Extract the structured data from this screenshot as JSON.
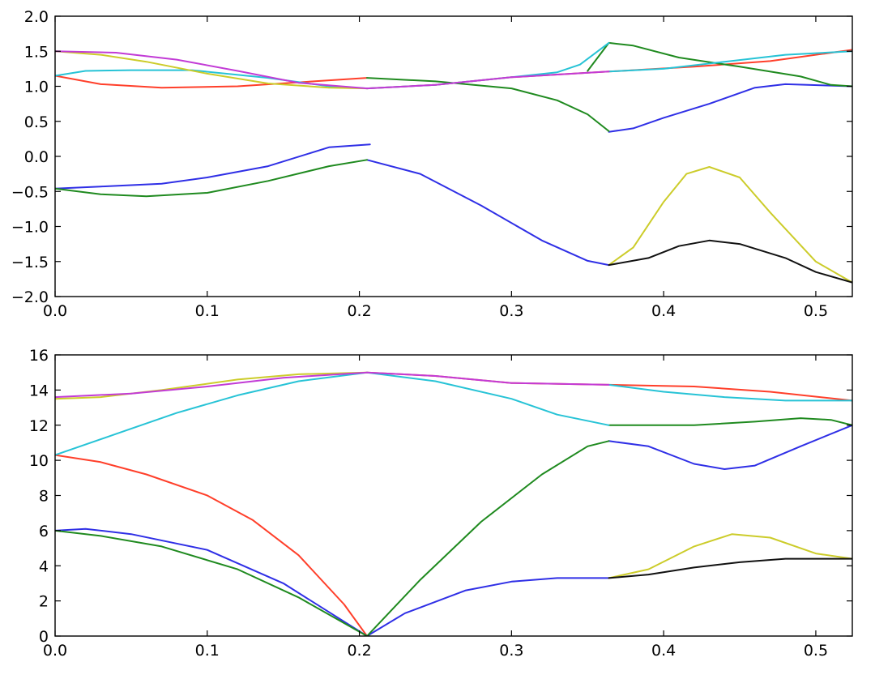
{
  "chart_data": [
    {
      "type": "line",
      "title": "",
      "xlabel": "",
      "ylabel": "",
      "xlim": [
        0.0,
        0.524
      ],
      "ylim": [
        -2.0,
        2.0
      ],
      "xticks": [
        0.0,
        0.1,
        0.2,
        0.3,
        0.4,
        0.5
      ],
      "xtick_labels": [
        "0.0",
        "0.1",
        "0.2",
        "0.3",
        "0.4",
        "0.5"
      ],
      "yticks": [
        -2.0,
        -1.5,
        -1.0,
        -0.5,
        0.0,
        0.5,
        1.0,
        1.5,
        2.0
      ],
      "ytick_labels": [
        "−2.0",
        "−1.5",
        "−1.0",
        "−0.5",
        "0.0",
        "0.5",
        "1.0",
        "1.5",
        "2.0"
      ],
      "grid": false,
      "series": [
        {
          "color": "#ff3f2a",
          "segments": [
            [
              [
                0.0,
                1.15
              ],
              [
                0.03,
                1.03
              ],
              [
                0.07,
                0.98
              ],
              [
                0.12,
                1.0
              ],
              [
                0.17,
                1.07
              ],
              [
                0.205,
                1.12
              ]
            ],
            [
              [
                0.205,
                0.97
              ],
              [
                0.25,
                1.02
              ],
              [
                0.3,
                1.13
              ],
              [
                0.364,
                1.21
              ],
              [
                0.42,
                1.28
              ],
              [
                0.47,
                1.36
              ],
              [
                0.524,
                1.52
              ]
            ]
          ]
        },
        {
          "color": "#2f2fe6",
          "segments": [
            [
              [
                0.0,
                -0.46
              ],
              [
                0.03,
                -0.43
              ],
              [
                0.07,
                -0.39
              ],
              [
                0.1,
                -0.3
              ],
              [
                0.14,
                -0.14
              ],
              [
                0.18,
                0.13
              ],
              [
                0.207,
                0.17
              ]
            ],
            [
              [
                0.205,
                -0.05
              ],
              [
                0.24,
                -0.25
              ],
              [
                0.28,
                -0.7
              ],
              [
                0.32,
                -1.2
              ],
              [
                0.35,
                -1.49
              ],
              [
                0.364,
                -1.55
              ]
            ],
            [
              [
                0.364,
                0.35
              ],
              [
                0.38,
                0.4
              ],
              [
                0.4,
                0.55
              ],
              [
                0.43,
                0.75
              ],
              [
                0.46,
                0.98
              ],
              [
                0.48,
                1.03
              ],
              [
                0.524,
                1.0
              ]
            ]
          ]
        },
        {
          "color": "#1f8a1f",
          "segments": [
            [
              [
                0.0,
                -0.46
              ],
              [
                0.03,
                -0.54
              ],
              [
                0.06,
                -0.57
              ],
              [
                0.1,
                -0.52
              ],
              [
                0.14,
                -0.35
              ],
              [
                0.18,
                -0.14
              ],
              [
                0.205,
                -0.05
              ]
            ],
            [
              [
                0.205,
                1.12
              ],
              [
                0.25,
                1.07
              ],
              [
                0.3,
                0.97
              ],
              [
                0.33,
                0.8
              ],
              [
                0.35,
                0.6
              ],
              [
                0.364,
                0.36
              ]
            ],
            [
              [
                0.35,
                1.22
              ],
              [
                0.364,
                1.62
              ],
              [
                0.38,
                1.58
              ],
              [
                0.41,
                1.41
              ],
              [
                0.45,
                1.28
              ],
              [
                0.49,
                1.14
              ],
              [
                0.51,
                1.02
              ],
              [
                0.524,
                1.0
              ]
            ]
          ]
        },
        {
          "color": "#27c3d6",
          "segments": [
            [
              [
                0.0,
                1.15
              ],
              [
                0.02,
                1.22
              ],
              [
                0.05,
                1.23
              ],
              [
                0.09,
                1.23
              ],
              [
                0.14,
                1.12
              ],
              [
                0.18,
                1.0
              ],
              [
                0.205,
                0.97
              ]
            ],
            [
              [
                0.205,
                0.97
              ],
              [
                0.25,
                1.02
              ],
              [
                0.3,
                1.13
              ],
              [
                0.33,
                1.2
              ],
              [
                0.345,
                1.31
              ],
              [
                0.364,
                1.62
              ]
            ],
            [
              [
                0.364,
                1.21
              ],
              [
                0.4,
                1.25
              ],
              [
                0.44,
                1.35
              ],
              [
                0.48,
                1.45
              ],
              [
                0.524,
                1.5
              ]
            ]
          ]
        },
        {
          "color": "#cccc2a",
          "segments": [
            [
              [
                0.0,
                1.5
              ],
              [
                0.03,
                1.45
              ],
              [
                0.06,
                1.35
              ],
              [
                0.1,
                1.18
              ],
              [
                0.14,
                1.04
              ],
              [
                0.18,
                0.98
              ],
              [
                0.205,
                0.97
              ]
            ],
            [
              [
                0.364,
                -1.55
              ],
              [
                0.38,
                -1.3
              ],
              [
                0.4,
                -0.65
              ],
              [
                0.415,
                -0.25
              ],
              [
                0.43,
                -0.15
              ],
              [
                0.45,
                -0.3
              ],
              [
                0.47,
                -0.8
              ],
              [
                0.5,
                -1.5
              ],
              [
                0.524,
                -1.8
              ]
            ]
          ]
        },
        {
          "color": "#c23bd6",
          "segments": [
            [
              [
                0.0,
                1.5
              ],
              [
                0.04,
                1.48
              ],
              [
                0.08,
                1.38
              ],
              [
                0.12,
                1.22
              ],
              [
                0.16,
                1.05
              ],
              [
                0.205,
                0.97
              ]
            ],
            [
              [
                0.205,
                0.97
              ],
              [
                0.25,
                1.02
              ],
              [
                0.3,
                1.13
              ],
              [
                0.364,
                1.21
              ]
            ]
          ]
        },
        {
          "color": "#111111",
          "segments": [
            [
              [
                0.364,
                -1.55
              ],
              [
                0.39,
                -1.45
              ],
              [
                0.41,
                -1.28
              ],
              [
                0.43,
                -1.2
              ],
              [
                0.45,
                -1.25
              ],
              [
                0.48,
                -1.45
              ],
              [
                0.5,
                -1.65
              ],
              [
                0.524,
                -1.8
              ]
            ]
          ]
        }
      ]
    },
    {
      "type": "line",
      "title": "",
      "xlabel": "",
      "ylabel": "",
      "xlim": [
        0.0,
        0.524
      ],
      "ylim": [
        0,
        16
      ],
      "xticks": [
        0.0,
        0.1,
        0.2,
        0.3,
        0.4,
        0.5
      ],
      "xtick_labels": [
        "0.0",
        "0.1",
        "0.2",
        "0.3",
        "0.4",
        "0.5"
      ],
      "yticks": [
        0,
        2,
        4,
        6,
        8,
        10,
        12,
        14,
        16
      ],
      "ytick_labels": [
        "0",
        "2",
        "4",
        "6",
        "8",
        "10",
        "12",
        "14",
        "16"
      ],
      "grid": false,
      "series": [
        {
          "color": "#ff3f2a",
          "segments": [
            [
              [
                0.0,
                10.3
              ],
              [
                0.03,
                9.9
              ],
              [
                0.06,
                9.2
              ],
              [
                0.1,
                8.0
              ],
              [
                0.13,
                6.6
              ],
              [
                0.16,
                4.6
              ],
              [
                0.19,
                1.8
              ],
              [
                0.205,
                0.0
              ]
            ],
            [
              [
                0.205,
                15.0
              ],
              [
                0.25,
                14.8
              ],
              [
                0.3,
                14.4
              ],
              [
                0.364,
                14.3
              ],
              [
                0.42,
                14.2
              ],
              [
                0.47,
                13.9
              ],
              [
                0.524,
                13.4
              ]
            ]
          ]
        },
        {
          "color": "#2f2fe6",
          "segments": [
            [
              [
                0.0,
                6.0
              ],
              [
                0.02,
                6.1
              ],
              [
                0.05,
                5.8
              ],
              [
                0.1,
                4.9
              ],
              [
                0.15,
                3.0
              ],
              [
                0.205,
                0.0
              ]
            ],
            [
              [
                0.205,
                0.0
              ],
              [
                0.23,
                1.3
              ],
              [
                0.27,
                2.6
              ],
              [
                0.3,
                3.1
              ],
              [
                0.33,
                3.3
              ],
              [
                0.364,
                3.3
              ]
            ],
            [
              [
                0.364,
                11.1
              ],
              [
                0.39,
                10.8
              ],
              [
                0.42,
                9.8
              ],
              [
                0.44,
                9.5
              ],
              [
                0.46,
                9.7
              ],
              [
                0.49,
                10.8
              ],
              [
                0.524,
                12.0
              ]
            ]
          ]
        },
        {
          "color": "#1f8a1f",
          "segments": [
            [
              [
                0.0,
                6.0
              ],
              [
                0.03,
                5.7
              ],
              [
                0.07,
                5.1
              ],
              [
                0.12,
                3.8
              ],
              [
                0.16,
                2.2
              ],
              [
                0.205,
                0.0
              ]
            ],
            [
              [
                0.205,
                0.0
              ],
              [
                0.24,
                3.2
              ],
              [
                0.28,
                6.5
              ],
              [
                0.32,
                9.2
              ],
              [
                0.35,
                10.8
              ],
              [
                0.364,
                11.1
              ]
            ],
            [
              [
                0.364,
                12.0
              ],
              [
                0.42,
                12.0
              ],
              [
                0.46,
                12.2
              ],
              [
                0.49,
                12.4
              ],
              [
                0.51,
                12.3
              ],
              [
                0.524,
                12.0
              ]
            ]
          ]
        },
        {
          "color": "#27c3d6",
          "segments": [
            [
              [
                0.0,
                10.3
              ],
              [
                0.04,
                11.5
              ],
              [
                0.08,
                12.7
              ],
              [
                0.12,
                13.7
              ],
              [
                0.16,
                14.5
              ],
              [
                0.205,
                15.0
              ]
            ],
            [
              [
                0.205,
                15.0
              ],
              [
                0.25,
                14.5
              ],
              [
                0.3,
                13.5
              ],
              [
                0.33,
                12.6
              ],
              [
                0.364,
                12.0
              ]
            ],
            [
              [
                0.364,
                14.3
              ],
              [
                0.4,
                13.9
              ],
              [
                0.44,
                13.6
              ],
              [
                0.48,
                13.4
              ],
              [
                0.524,
                13.4
              ]
            ]
          ]
        },
        {
          "color": "#cccc2a",
          "segments": [
            [
              [
                0.0,
                13.5
              ],
              [
                0.03,
                13.6
              ],
              [
                0.07,
                14.0
              ],
              [
                0.12,
                14.6
              ],
              [
                0.16,
                14.9
              ],
              [
                0.205,
                15.0
              ]
            ],
            [
              [
                0.364,
                3.3
              ],
              [
                0.39,
                3.8
              ],
              [
                0.42,
                5.1
              ],
              [
                0.445,
                5.8
              ],
              [
                0.47,
                5.6
              ],
              [
                0.5,
                4.7
              ],
              [
                0.524,
                4.4
              ]
            ]
          ]
        },
        {
          "color": "#c23bd6",
          "segments": [
            [
              [
                0.0,
                13.6
              ],
              [
                0.05,
                13.8
              ],
              [
                0.1,
                14.2
              ],
              [
                0.15,
                14.7
              ],
              [
                0.205,
                15.0
              ]
            ],
            [
              [
                0.205,
                15.0
              ],
              [
                0.25,
                14.8
              ],
              [
                0.3,
                14.4
              ],
              [
                0.364,
                14.3
              ]
            ]
          ]
        },
        {
          "color": "#111111",
          "segments": [
            [
              [
                0.364,
                3.3
              ],
              [
                0.39,
                3.5
              ],
              [
                0.42,
                3.9
              ],
              [
                0.45,
                4.2
              ],
              [
                0.48,
                4.4
              ],
              [
                0.524,
                4.4
              ]
            ]
          ]
        }
      ]
    }
  ]
}
